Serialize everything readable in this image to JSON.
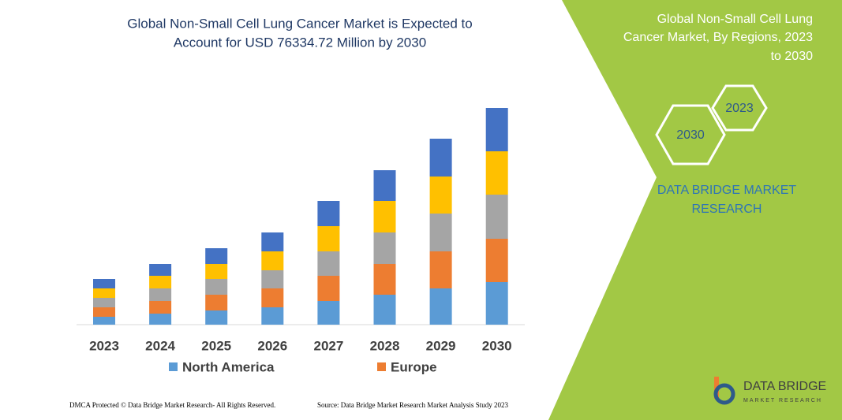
{
  "chart_data": {
    "type": "bar",
    "stacked": true,
    "title": [
      "Global Non-Small Cell Lung Cancer Market is Expected to",
      "Account for USD 76334.72 Million by 2030"
    ],
    "categories": [
      "2023",
      "2024",
      "2025",
      "2026",
      "2027",
      "2028",
      "2029",
      "2030"
    ],
    "series": [
      {
        "name": "North America",
        "color": "#5b9bd5",
        "values": [
          10,
          14,
          18,
          22,
          30,
          38,
          46,
          54
        ]
      },
      {
        "name": "Europe",
        "color": "#ed7d31",
        "values": [
          12,
          16,
          20,
          24,
          32,
          39,
          47,
          55
        ]
      },
      {
        "color": "#a5a5a5",
        "values": [
          12,
          16,
          20,
          23,
          31,
          40,
          48,
          56
        ]
      },
      {
        "color": "#ffc000",
        "values": [
          12,
          16,
          19,
          24,
          32,
          40,
          47,
          55
        ]
      },
      {
        "color": "#4472c4",
        "values": [
          12,
          15,
          20,
          24,
          32,
          39,
          48,
          55
        ]
      }
    ]
  },
  "panel": {
    "title": [
      "Global Non-Small Cell Lung",
      "Cancer Market, By Regions, 2023",
      "to 2030"
    ],
    "hex_big": "2030",
    "hex_small": "2023",
    "brand": [
      "DATA BRIDGE MARKET",
      "RESEARCH"
    ],
    "logo": [
      "DATA BRIDGE",
      "MARKET RESEARCH"
    ]
  },
  "footer": {
    "left": "DMCA Protected © Data Bridge Market Research-  All Rights Reserved.",
    "right": "Source: Data Bridge Market Research  Market Analysis Study 2023"
  }
}
